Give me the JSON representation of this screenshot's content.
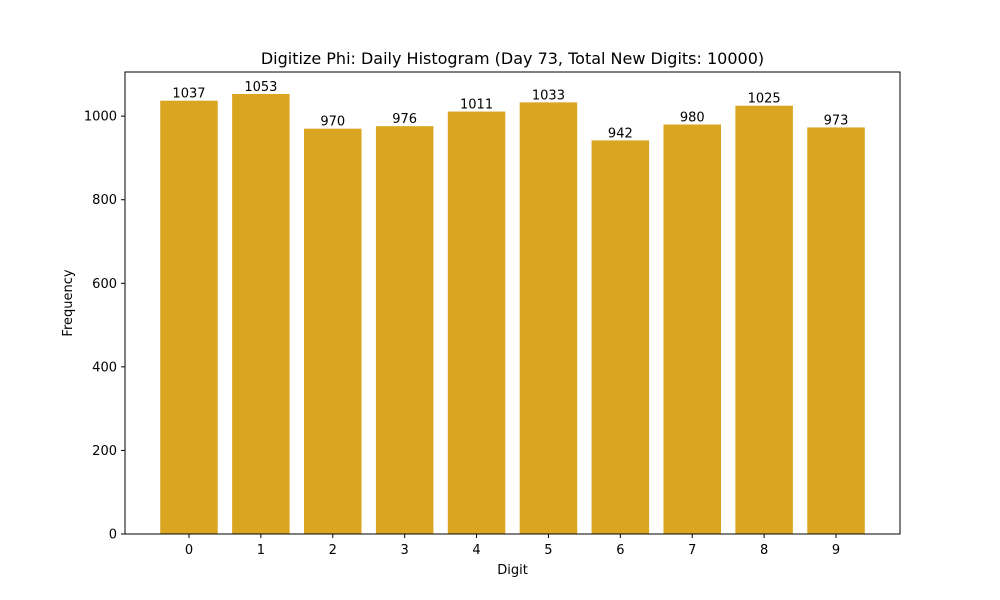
{
  "chart_data": {
    "type": "bar",
    "title": "Digitize Phi: Daily Histogram (Day 73, Total New Digits: 10000)",
    "xlabel": "Digit",
    "ylabel": "Frequency",
    "categories": [
      "0",
      "1",
      "2",
      "3",
      "4",
      "5",
      "6",
      "7",
      "8",
      "9"
    ],
    "values": [
      1037,
      1053,
      970,
      976,
      1011,
      1033,
      942,
      980,
      1025,
      973
    ],
    "bar_labels": [
      "1037",
      "1053",
      "970",
      "976",
      "1011",
      "1033",
      "942",
      "980",
      "1025",
      "973"
    ],
    "yticks": [
      0,
      200,
      400,
      600,
      800,
      1000
    ],
    "ylim": [
      0,
      1105.65
    ],
    "grid": false,
    "legend": null,
    "bar_color": "#DAA520"
  }
}
